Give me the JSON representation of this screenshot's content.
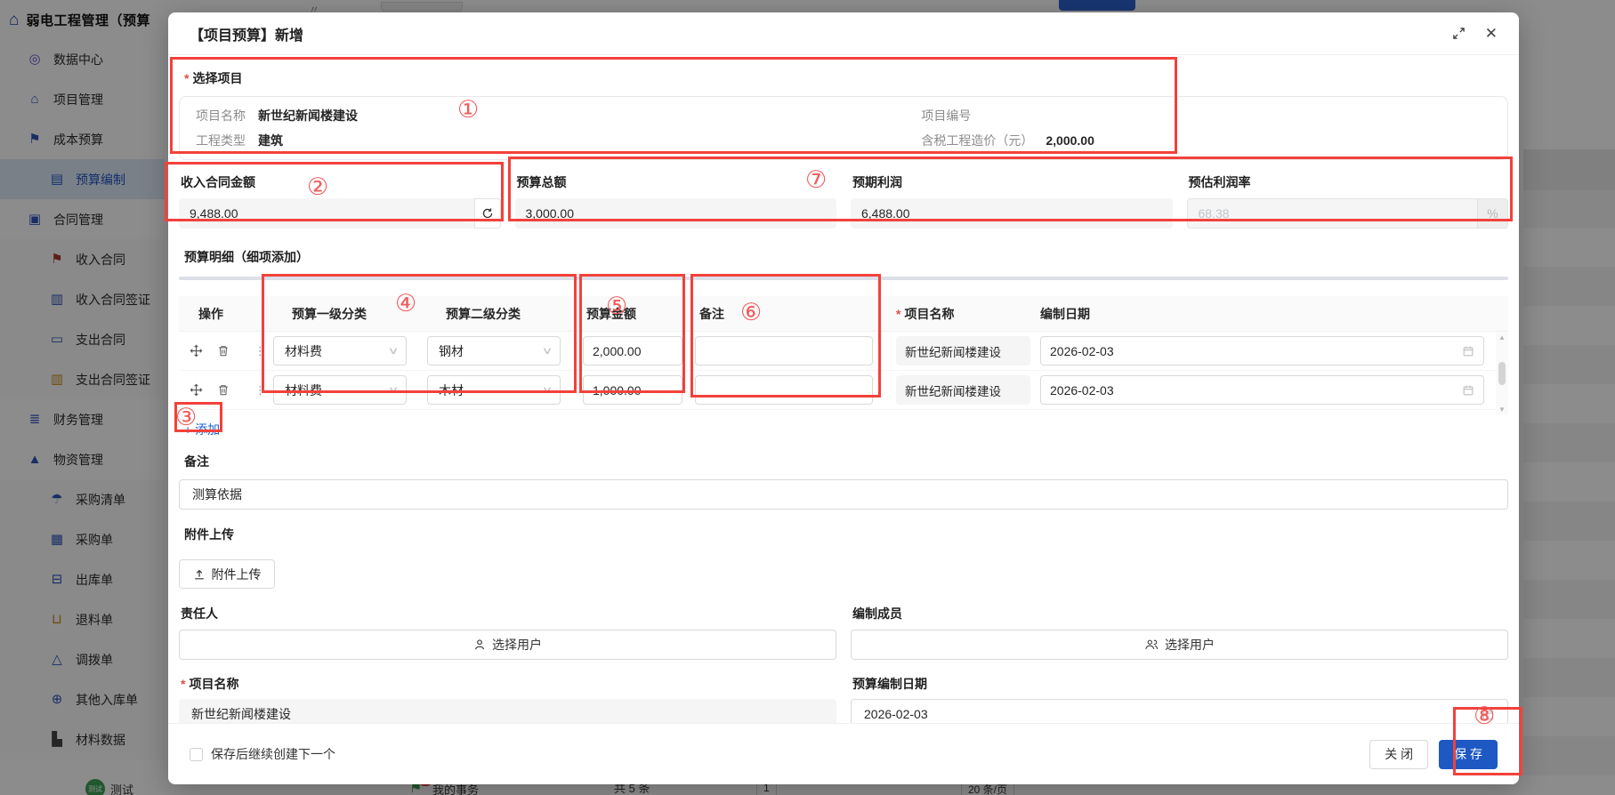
{
  "app": {
    "title": "弱电工程管理（预算"
  },
  "sidebar": {
    "items": [
      {
        "icon": "compass-icon",
        "label": "数据中心",
        "color": "purple",
        "level": 0,
        "selected": false
      },
      {
        "icon": "home-icon",
        "label": "项目管理",
        "color": "blue",
        "level": 0,
        "selected": false
      },
      {
        "icon": "pushpin-icon",
        "label": "成本预算",
        "color": "blue",
        "level": 0,
        "selected": false
      },
      {
        "icon": "folder-icon",
        "label": "预算编制",
        "color": "blue",
        "level": 1,
        "selected": true
      },
      {
        "icon": "briefcase-icon",
        "label": "合同管理",
        "color": "blue",
        "level": 0,
        "selected": false
      },
      {
        "icon": "pushpin-icon",
        "label": "收入合同",
        "color": "red",
        "level": 1,
        "selected": false
      },
      {
        "icon": "barchart-icon",
        "label": "收入合同签证",
        "color": "blue",
        "level": 1,
        "selected": false
      },
      {
        "icon": "pay-icon",
        "label": "支出合同",
        "color": "blue",
        "level": 1,
        "selected": false
      },
      {
        "icon": "barchart-icon",
        "label": "支出合同签证",
        "color": "orange",
        "level": 1,
        "selected": false
      },
      {
        "icon": "coins-icon",
        "label": "财务管理",
        "color": "blue",
        "level": 0,
        "selected": false
      },
      {
        "icon": "materials-icon",
        "label": "物资管理",
        "color": "blue",
        "level": 0,
        "selected": false
      },
      {
        "icon": "parachute-icon",
        "label": "采购清单",
        "color": "blue",
        "level": 1,
        "selected": false
      },
      {
        "icon": "cart-icon",
        "label": "采购单",
        "color": "blue",
        "level": 1,
        "selected": false
      },
      {
        "icon": "truck-icon",
        "label": "出库单",
        "color": "blue",
        "level": 1,
        "selected": false
      },
      {
        "icon": "return-icon",
        "label": "退料单",
        "color": "orange",
        "level": 1,
        "selected": false
      },
      {
        "icon": "scales-icon",
        "label": "调拨单",
        "color": "blue",
        "level": 1,
        "selected": false
      },
      {
        "icon": "car-icon",
        "label": "其他入库单",
        "color": "blue",
        "level": 1,
        "selected": false
      },
      {
        "icon": "chartdata-icon",
        "label": "材料数据",
        "color": "dark",
        "level": 1,
        "selected": false
      }
    ]
  },
  "bottom_bar": {
    "avatar_text": "测试",
    "user": "测试",
    "badge": "6",
    "tasks": "我的事务",
    "total": "共 5 条",
    "page": "1",
    "page_size": "20 条/页"
  },
  "modal": {
    "title": "【项目预算】新增",
    "project_section": {
      "label": "选择项目",
      "rows": [
        [
          {
            "label": "项目名称",
            "value": "新世纪新闻楼建设"
          },
          {
            "label": "项目编号",
            "value": ""
          }
        ],
        [
          {
            "label": "工程类型",
            "value": "建筑"
          },
          {
            "label": "含税工程造价（元）",
            "value": "2,000.00"
          }
        ]
      ]
    },
    "amount_fields": [
      {
        "label": "收入合同金额",
        "value": "9,488.00"
      },
      {
        "label": "预算总额",
        "value": "3,000.00"
      },
      {
        "label": "预期利润",
        "value": "6,488.00"
      },
      {
        "label": "预估利润率",
        "value": "68.38",
        "suffix": "%"
      }
    ],
    "detail_section": {
      "title": "预算明细（细项添加）",
      "columns": [
        "操作",
        "预算一级分类",
        "预算二级分类",
        "预算金额",
        "备注",
        "项目名称",
        "编制日期"
      ],
      "rows": [
        {
          "cat1": "材料费",
          "cat2": "钢材",
          "amount": "2,000.00",
          "remark": "",
          "project": "新世纪新闻楼建设",
          "date": "2026-02-03"
        },
        {
          "cat1": "材料费",
          "cat2": "木材",
          "amount": "1,000.00",
          "remark": "",
          "project": "新世纪新闻楼建设",
          "date": "2026-02-03"
        }
      ],
      "add_label": "添加"
    },
    "remark": {
      "label": "备注",
      "value": "测算依据"
    },
    "attachment": {
      "label": "附件上传",
      "button": "附件上传"
    },
    "owner": {
      "label": "责任人",
      "button": "选择用户"
    },
    "members": {
      "label": "编制成员",
      "button": "选择用户"
    },
    "project_name": {
      "label": "项目名称",
      "value": "新世纪新闻楼建设"
    },
    "budget_date": {
      "label": "预算编制日期",
      "value": "2026-02-03"
    },
    "footer": {
      "checkbox_label": "保存后继续创建下一个",
      "close": "关 闭",
      "save": "保 存"
    }
  },
  "annotations": {
    "markers": [
      "①",
      "②",
      "③",
      "④",
      "⑤",
      "⑥",
      "⑦",
      "⑧"
    ]
  },
  "colors": {
    "primary": "#1d58c3",
    "annotation_red": "#f3413b",
    "link_blue": "#2064d4",
    "success_green": "#3da154"
  }
}
